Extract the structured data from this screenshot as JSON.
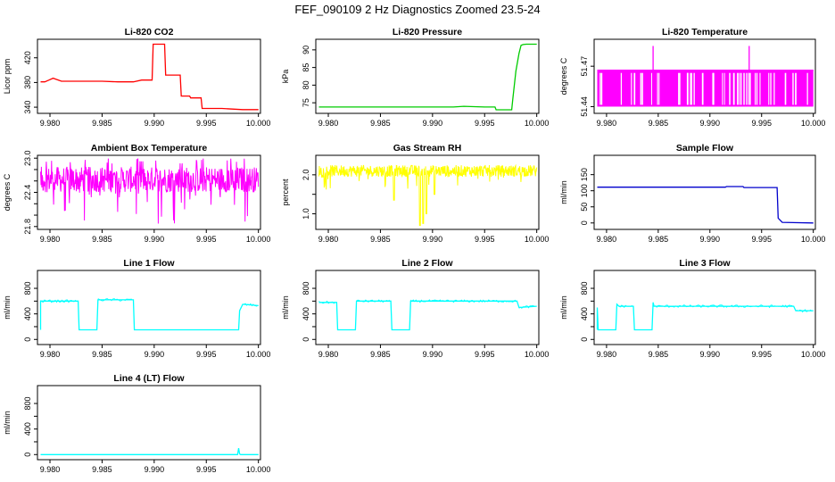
{
  "figure_title": "FEF_090109  2 Hz Diagnostics Zoomed 23.5-24",
  "chart_data": [
    {
      "type": "line",
      "title": "Li-820 CO2",
      "xlabel": "",
      "ylabel": "Licor ppm",
      "color": "#ff0000",
      "xlim": [
        9.9788,
        10.0002
      ],
      "ylim": [
        330,
        450
      ],
      "xticks": [
        9.98,
        9.985,
        9.99,
        9.995,
        10.0
      ],
      "xtick_labels": [
        "9.980",
        "9.985",
        "9.990",
        "9.995",
        "10.000"
      ],
      "yticks": [
        340,
        380,
        420
      ],
      "ytick_labels": [
        "340",
        "380",
        "420"
      ],
      "series": [
        {
          "x": [
            9.9791,
            9.9795,
            9.9799,
            9.9803,
            9.9811,
            9.985,
            9.9865,
            9.987,
            9.988,
            9.9888,
            9.9898,
            9.9899,
            9.991,
            9.9911,
            9.9925,
            9.9926,
            9.9934,
            9.9935,
            9.9945,
            9.9946,
            9.9965,
            9.9975,
            9.9985,
            10.0
          ],
          "y": [
            381,
            381,
            384,
            387,
            382,
            382,
            381,
            381,
            381,
            384,
            384,
            442,
            442,
            392,
            392,
            358,
            358,
            355,
            355,
            338,
            338,
            337,
            336,
            336
          ]
        }
      ]
    },
    {
      "type": "line",
      "title": "Li-820 Pressure",
      "xlabel": "",
      "ylabel": "kPa",
      "color": "#00cc00",
      "xlim": [
        9.9788,
        10.0002
      ],
      "ylim": [
        72,
        93
      ],
      "xticks": [
        9.98,
        9.985,
        9.99,
        9.995,
        10.0
      ],
      "xtick_labels": [
        "9.980",
        "9.985",
        "9.990",
        "9.995",
        "10.000"
      ],
      "yticks": [
        75,
        80,
        85,
        90
      ],
      "ytick_labels": [
        "75",
        "80",
        "85",
        "90"
      ],
      "series": [
        {
          "x": [
            9.9791,
            9.992,
            9.993,
            9.995,
            9.996,
            9.9961,
            9.9976,
            9.9977,
            9.998,
            9.9983,
            9.9985,
            9.9987,
            9.999,
            10.0
          ],
          "y": [
            73.8,
            73.8,
            74.0,
            73.8,
            73.8,
            73.0,
            73.0,
            76,
            84,
            89,
            91.3,
            91.5,
            91.6,
            91.6
          ]
        }
      ]
    },
    {
      "type": "line",
      "title": "Li-820 Temperature",
      "xlabel": "",
      "ylabel": "degrees C",
      "color": "#ff00ff",
      "xlim": [
        9.9788,
        10.0002
      ],
      "ylim": [
        51.435,
        51.49
      ],
      "xticks": [
        9.98,
        9.985,
        9.99,
        9.995,
        10.0
      ],
      "xtick_labels": [
        "9.980",
        "9.985",
        "9.990",
        "9.995",
        "10.000"
      ],
      "yticks": [
        51.44,
        51.47
      ],
      "ytick_labels": [
        "51.44",
        "51.47"
      ],
      "series": [
        {
          "x": [
            9.9791,
            9.9845,
            9.9845,
            9.9845,
            9.9938,
            9.9938,
            9.9938,
            10.0
          ],
          "y": [
            51.467,
            51.467,
            51.485,
            51.467,
            51.467,
            51.485,
            51.467,
            51.467
          ],
          "band_low": 51.44,
          "band_high": 51.467
        }
      ]
    },
    {
      "type": "line",
      "title": "Ambient Box Temperature",
      "xlabel": "",
      "ylabel": "degrees C",
      "color": "#ff00ff",
      "xlim": [
        9.9788,
        10.0002
      ],
      "ylim": [
        21.75,
        23.05
      ],
      "xticks": [
        9.98,
        9.985,
        9.99,
        9.995,
        10.0
      ],
      "xtick_labels": [
        "9.980",
        "9.985",
        "9.990",
        "9.995",
        "10.000"
      ],
      "yticks": [
        21.8,
        22.0,
        22.2,
        22.4,
        22.6,
        22.8,
        23.0
      ],
      "ytick_labels": [
        "21.8",
        "",
        "",
        "22.4",
        "",
        "",
        "23.0"
      ],
      "series": [
        {
          "center": 22.55,
          "band_low": 22.4,
          "band_high": 22.85,
          "spike_low": 21.85,
          "spike_high": 23.0
        }
      ]
    },
    {
      "type": "line",
      "title": "Gas Stream RH",
      "xlabel": "",
      "ylabel": "percent",
      "color": "#ffff00",
      "xlim": [
        9.9788,
        10.0002
      ],
      "ylim": [
        0.6,
        2.5
      ],
      "xticks": [
        9.98,
        9.985,
        9.99,
        9.995,
        10.0
      ],
      "xtick_labels": [
        "9.980",
        "9.985",
        "9.990",
        "9.995",
        "10.000"
      ],
      "yticks": [
        1.0,
        1.5,
        2.0
      ],
      "ytick_labels": [
        "1.0",
        "",
        "2.0"
      ],
      "series": [
        {
          "center": 2.1,
          "band_low": 1.95,
          "band_high": 2.25,
          "dips": [
            [
              9.9863,
              1.35
            ],
            [
              9.9888,
              0.7
            ],
            [
              9.9891,
              0.75
            ],
            [
              9.9894,
              1.0
            ],
            [
              9.9902,
              1.5
            ]
          ]
        }
      ]
    },
    {
      "type": "line",
      "title": "Sample Flow",
      "xlabel": "",
      "ylabel": "ml/min",
      "color": "#0000cc",
      "xlim": [
        9.9788,
        10.0002
      ],
      "ylim": [
        -20,
        210
      ],
      "xticks": [
        9.98,
        9.985,
        9.99,
        9.995,
        10.0
      ],
      "xtick_labels": [
        "9.980",
        "9.985",
        "9.990",
        "9.995",
        "10.000"
      ],
      "yticks": [
        0,
        50,
        100,
        150
      ],
      "ytick_labels": [
        "0",
        "50",
        "100",
        "150"
      ],
      "series": [
        {
          "x": [
            9.9791,
            9.9915,
            9.9916,
            9.9932,
            9.9933,
            9.9965,
            9.9966,
            9.997,
            10.0
          ],
          "y": [
            111,
            111,
            113,
            113,
            110,
            110,
            15,
            2,
            0
          ]
        }
      ]
    },
    {
      "type": "line",
      "title": "Line 1 Flow",
      "xlabel": "",
      "ylabel": "ml/min",
      "color": "#00ffff",
      "xlim": [
        9.9788,
        10.0002
      ],
      "ylim": [
        -80,
        1080
      ],
      "xticks": [
        9.98,
        9.985,
        9.99,
        9.995,
        10.0
      ],
      "xtick_labels": [
        "9.980",
        "9.985",
        "9.990",
        "9.995",
        "10.000"
      ],
      "yticks": [
        0,
        200,
        400,
        600,
        800
      ],
      "ytick_labels": [
        "0",
        "",
        "400",
        "",
        "800"
      ],
      "series": [
        {
          "x": [
            9.9791,
            9.9791,
            9.9827,
            9.9828,
            9.9845,
            9.9846,
            9.988,
            9.9881,
            9.9981,
            9.9982,
            9.9985,
            10.0
          ],
          "y": [
            150,
            600,
            600,
            150,
            150,
            620,
            620,
            150,
            150,
            450,
            550,
            530
          ]
        }
      ]
    },
    {
      "type": "line",
      "title": "Line 2 Flow",
      "xlabel": "",
      "ylabel": "ml/min",
      "color": "#00ffff",
      "xlim": [
        9.9788,
        10.0002
      ],
      "ylim": [
        -80,
        1080
      ],
      "xticks": [
        9.98,
        9.985,
        9.99,
        9.995,
        10.0
      ],
      "xtick_labels": [
        "9.980",
        "9.985",
        "9.990",
        "9.995",
        "10.000"
      ],
      "yticks": [
        0,
        200,
        400,
        600,
        800
      ],
      "ytick_labels": [
        "0",
        "",
        "400",
        "",
        "800"
      ],
      "series": [
        {
          "x": [
            9.9791,
            9.9808,
            9.9809,
            9.9826,
            9.9827,
            9.986,
            9.9861,
            9.9878,
            9.9879,
            9.9981,
            9.9983,
            10.0
          ],
          "y": [
            580,
            580,
            150,
            150,
            600,
            600,
            150,
            150,
            600,
            600,
            500,
            520
          ]
        }
      ]
    },
    {
      "type": "line",
      "title": "Line 3 Flow",
      "xlabel": "",
      "ylabel": "ml/min",
      "color": "#00ffff",
      "xlim": [
        9.9788,
        10.0002
      ],
      "ylim": [
        -80,
        1080
      ],
      "xticks": [
        9.98,
        9.985,
        9.99,
        9.995,
        10.0
      ],
      "xtick_labels": [
        "9.980",
        "9.985",
        "9.990",
        "9.995",
        "10.000"
      ],
      "yticks": [
        0,
        200,
        400,
        600,
        800
      ],
      "ytick_labels": [
        "0",
        "",
        "400",
        "",
        "800"
      ],
      "series": [
        {
          "x": [
            9.9791,
            9.9791,
            9.9792,
            9.9809,
            9.981,
            9.9812,
            9.9826,
            9.9827,
            9.9844,
            9.9845,
            9.9846,
            9.9981,
            9.9983,
            10.0
          ],
          "y": [
            150,
            500,
            150,
            150,
            550,
            520,
            520,
            150,
            150,
            580,
            520,
            520,
            450,
            450
          ]
        }
      ]
    },
    {
      "type": "line",
      "title": "Line 4 (LT) Flow",
      "xlabel": "",
      "ylabel": "ml/min",
      "color": "#00ffff",
      "xlim": [
        9.9788,
        10.0002
      ],
      "ylim": [
        -80,
        1080
      ],
      "xticks": [
        9.98,
        9.985,
        9.99,
        9.995,
        10.0
      ],
      "xtick_labels": [
        "9.980",
        "9.985",
        "9.990",
        "9.995",
        "10.000"
      ],
      "yticks": [
        0,
        200,
        400,
        600,
        800
      ],
      "ytick_labels": [
        "0",
        "",
        "400",
        "",
        "800"
      ],
      "series": [
        {
          "x": [
            9.9791,
            9.998,
            9.9981,
            9.9982,
            9.9983,
            10.0
          ],
          "y": [
            0,
            0,
            100,
            10,
            0,
            0
          ]
        }
      ]
    }
  ]
}
